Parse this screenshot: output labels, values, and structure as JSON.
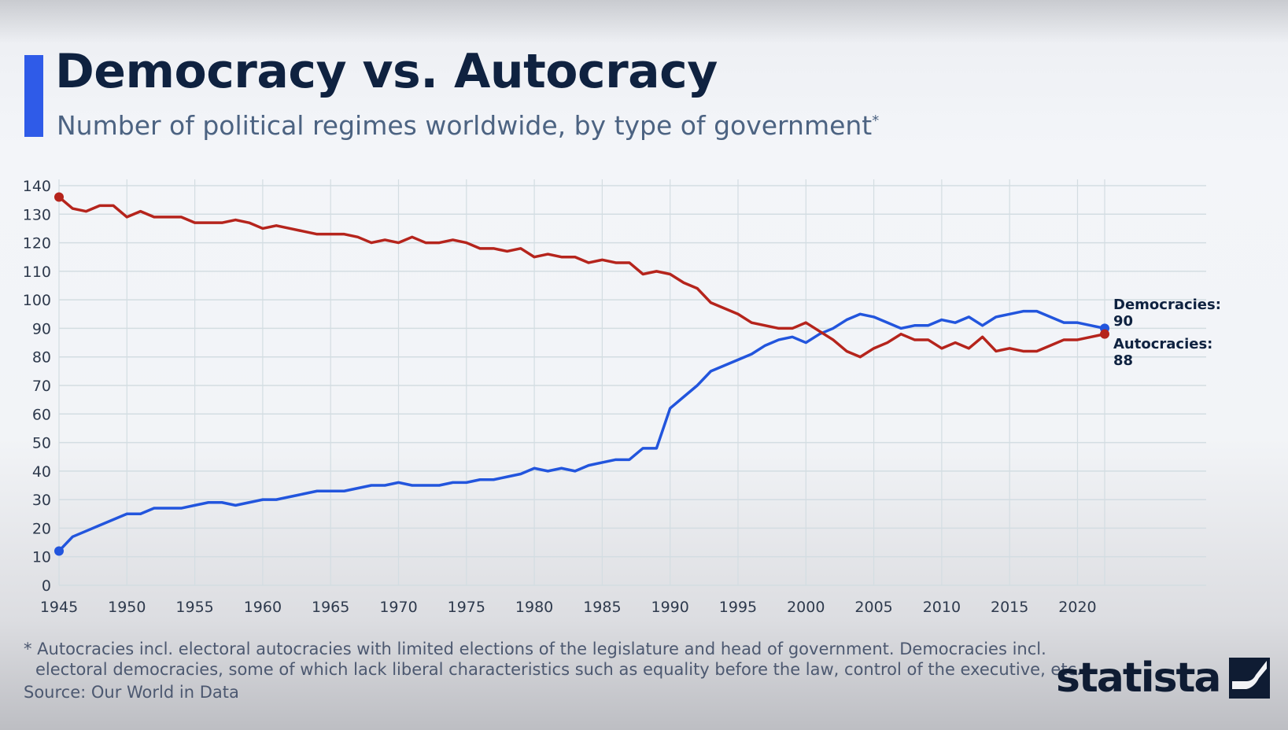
{
  "header": {
    "title": "Democracy vs. Autocracy",
    "subtitle": "Number of political regimes worldwide, by type of government",
    "subtitle_mark": "*"
  },
  "footer": {
    "note_line1": "* Autocracies incl. electoral autocracies with limited elections of the legislature and head of government. Democracies incl.",
    "note_line2": "electoral democracies, some of which lack liberal characteristics such as equality before the law, control of the executive, etc.",
    "source": "Source: Our World in Data",
    "logo": "statista"
  },
  "colors": {
    "accent": "#2f5be8",
    "democracies": "#2255dd",
    "autocracies": "#b5241c",
    "title": "#0f2240"
  },
  "chart_data": {
    "type": "line",
    "title": "",
    "xlabel": "",
    "ylabel": "",
    "ylim": [
      0,
      140
    ],
    "yticks": [
      0,
      10,
      20,
      30,
      40,
      50,
      60,
      70,
      80,
      90,
      100,
      110,
      120,
      130,
      140
    ],
    "xlim": [
      1945,
      2022
    ],
    "xticks": [
      1945,
      1950,
      1955,
      1960,
      1965,
      1970,
      1975,
      1980,
      1985,
      1990,
      1995,
      2000,
      2005,
      2010,
      2015,
      2020
    ],
    "grid": true,
    "x": [
      1945,
      1946,
      1947,
      1948,
      1949,
      1950,
      1951,
      1952,
      1953,
      1954,
      1955,
      1956,
      1957,
      1958,
      1959,
      1960,
      1961,
      1962,
      1963,
      1964,
      1965,
      1966,
      1967,
      1968,
      1969,
      1970,
      1971,
      1972,
      1973,
      1974,
      1975,
      1976,
      1977,
      1978,
      1979,
      1980,
      1981,
      1982,
      1983,
      1984,
      1985,
      1986,
      1987,
      1988,
      1989,
      1990,
      1991,
      1992,
      1993,
      1994,
      1995,
      1996,
      1997,
      1998,
      1999,
      2000,
      2001,
      2002,
      2003,
      2004,
      2005,
      2006,
      2007,
      2008,
      2009,
      2010,
      2011,
      2012,
      2013,
      2014,
      2015,
      2016,
      2017,
      2018,
      2019,
      2020,
      2021,
      2022
    ],
    "series": [
      {
        "name": "Democracies",
        "end_label": "Democracies:",
        "end_value": "90",
        "color": "#2255dd",
        "values": [
          12,
          17,
          19,
          21,
          23,
          25,
          25,
          27,
          27,
          27,
          28,
          29,
          29,
          28,
          29,
          30,
          30,
          31,
          32,
          33,
          33,
          33,
          34,
          35,
          35,
          36,
          35,
          35,
          35,
          36,
          36,
          37,
          37,
          38,
          39,
          41,
          40,
          41,
          40,
          42,
          43,
          44,
          44,
          48,
          48,
          62,
          66,
          70,
          75,
          77,
          79,
          81,
          84,
          86,
          87,
          85,
          88,
          90,
          93,
          95,
          94,
          92,
          90,
          91,
          91,
          93,
          92,
          94,
          91,
          94,
          95,
          96,
          96,
          94,
          92,
          92,
          91,
          90
        ]
      },
      {
        "name": "Autocracies",
        "end_label": "Autocracies:",
        "end_value": "88",
        "color": "#b5241c",
        "values": [
          136,
          132,
          131,
          133,
          133,
          129,
          131,
          129,
          129,
          129,
          127,
          127,
          127,
          128,
          127,
          125,
          126,
          125,
          124,
          123,
          123,
          123,
          122,
          120,
          121,
          120,
          122,
          120,
          120,
          121,
          120,
          118,
          118,
          117,
          118,
          115,
          116,
          115,
          115,
          113,
          114,
          113,
          113,
          109,
          110,
          109,
          106,
          104,
          99,
          97,
          95,
          92,
          91,
          90,
          90,
          92,
          89,
          86,
          82,
          80,
          83,
          85,
          88,
          86,
          86,
          83,
          85,
          83,
          87,
          82,
          83,
          82,
          82,
          84,
          86,
          86,
          87,
          88
        ]
      }
    ]
  }
}
